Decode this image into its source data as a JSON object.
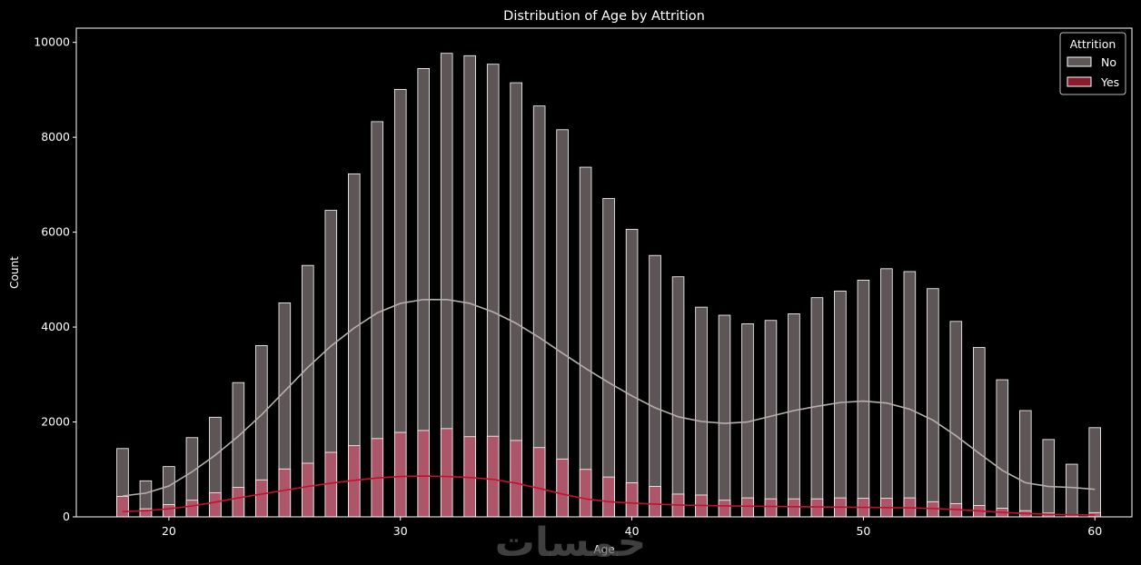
{
  "chart_data": {
    "type": "histogram",
    "title": "Distribution of Age by Attrition",
    "xlabel": "Age",
    "ylabel": "Count",
    "xlim": [
      16,
      61.6
    ],
    "ylim": [
      0,
      10300
    ],
    "xticks": [
      20,
      30,
      40,
      50,
      60
    ],
    "yticks": [
      0,
      2000,
      4000,
      6000,
      8000,
      10000
    ],
    "legend": {
      "title": "Attrition",
      "position": "top-right"
    },
    "x": [
      18,
      19,
      20,
      21,
      22,
      23,
      24,
      25,
      26,
      27,
      28,
      29,
      30,
      31,
      32,
      33,
      34,
      35,
      36,
      37,
      38,
      39,
      40,
      41,
      42,
      43,
      44,
      45,
      46,
      47,
      48,
      49,
      50,
      51,
      52,
      53,
      54,
      55,
      56,
      57,
      58,
      59,
      60
    ],
    "series": [
      {
        "name": "No",
        "color": "#5e5656",
        "kde_color": "#b8aeae",
        "values": [
          1440,
          760,
          1060,
          1670,
          2100,
          2830,
          3610,
          4510,
          5300,
          6460,
          7230,
          8330,
          9010,
          9450,
          9770,
          9720,
          9540,
          9150,
          8660,
          8160,
          7370,
          6710,
          6060,
          5510,
          5060,
          4420,
          4250,
          4070,
          4140,
          4280,
          4620,
          4760,
          4990,
          5230,
          5170,
          4810,
          4120,
          3570,
          2890,
          2240,
          1630,
          1110,
          1880
        ],
        "kde": [
          440,
          500,
          650,
          950,
          1300,
          1700,
          2150,
          2650,
          3150,
          3600,
          3980,
          4300,
          4500,
          4580,
          4580,
          4500,
          4320,
          4080,
          3780,
          3450,
          3130,
          2830,
          2550,
          2300,
          2110,
          2010,
          1970,
          2000,
          2120,
          2240,
          2330,
          2410,
          2440,
          2400,
          2270,
          2040,
          1710,
          1340,
          980,
          720,
          640,
          620,
          580
        ]
      },
      {
        "name": "Yes",
        "color": "#b4566b",
        "kde_color": "#c8102e",
        "values": [
          430,
          170,
          260,
          350,
          510,
          620,
          780,
          1010,
          1130,
          1360,
          1500,
          1650,
          1780,
          1820,
          1860,
          1690,
          1700,
          1610,
          1460,
          1220,
          1000,
          840,
          720,
          640,
          480,
          460,
          350,
          400,
          380,
          380,
          380,
          400,
          390,
          390,
          400,
          320,
          280,
          240,
          180,
          130,
          80,
          50,
          90
        ],
        "kde": [
          110,
          130,
          170,
          230,
          310,
          400,
          480,
          560,
          640,
          710,
          770,
          820,
          850,
          860,
          850,
          830,
          790,
          710,
          600,
          480,
          380,
          320,
          290,
          270,
          250,
          240,
          230,
          225,
          220,
          215,
          210,
          205,
          200,
          195,
          190,
          175,
          155,
          125,
          95,
          70,
          55,
          45,
          40
        ]
      }
    ]
  },
  "watermark": "خمسات"
}
